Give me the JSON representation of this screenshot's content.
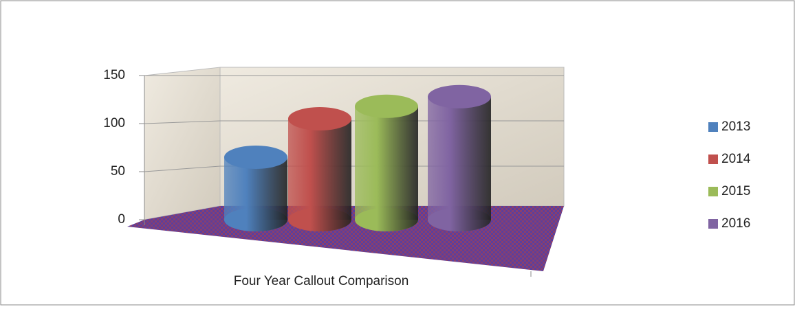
{
  "chart_data": {
    "type": "bar",
    "categories": [
      "Four Year Callout Comparison"
    ],
    "series": [
      {
        "name": "2013",
        "color": "#4f81bd",
        "values": [
          65
        ]
      },
      {
        "name": "2014",
        "color": "#c0504d",
        "values": [
          105
        ]
      },
      {
        "name": "2015",
        "color": "#9bbb59",
        "values": [
          118
        ]
      },
      {
        "name": "2016",
        "color": "#8064a2",
        "values": [
          128
        ]
      }
    ],
    "ylim": [
      0,
      150
    ],
    "yticks": [
      0,
      50,
      100,
      150
    ],
    "grid": true,
    "legend": "right"
  }
}
